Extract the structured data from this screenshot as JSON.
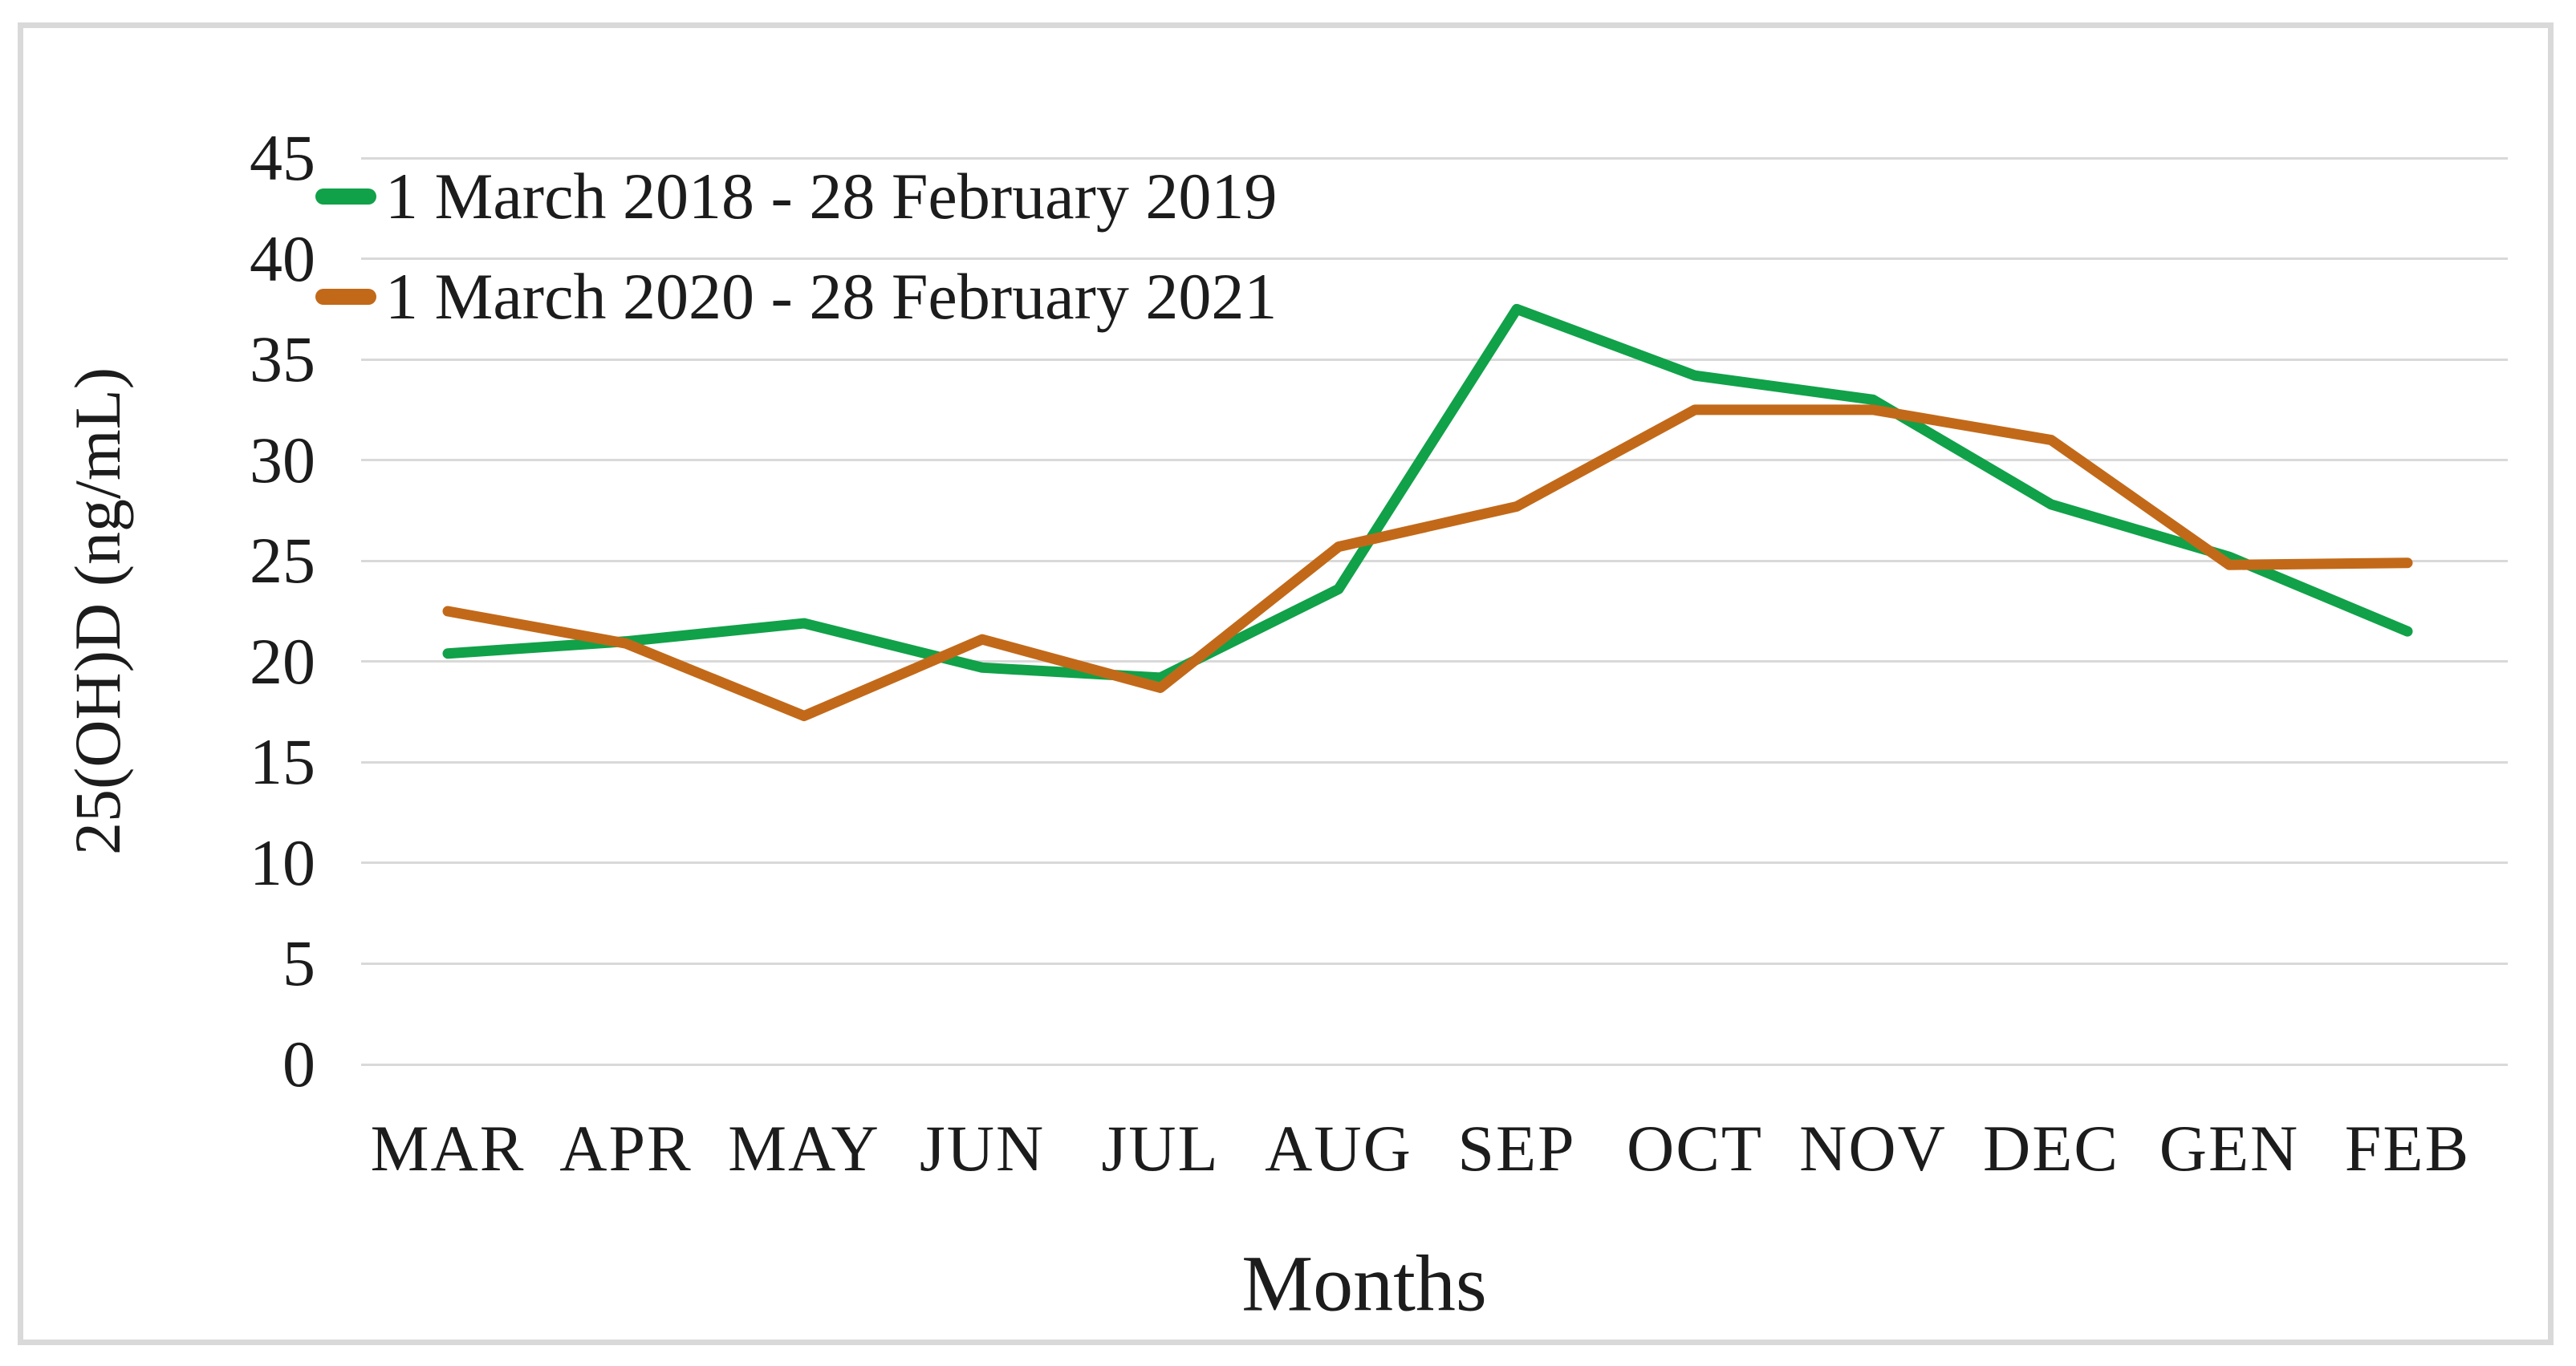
{
  "figure": {
    "background": "#ffffff",
    "border_color": "#d9d9d9",
    "text_color": "#1c1c1c"
  },
  "y_axis": {
    "title": "25(OH)D (ng/mL)",
    "tick_labels": [
      "45",
      "40",
      "35",
      "30",
      "25",
      "20",
      "15",
      "10",
      "5",
      "0"
    ]
  },
  "x_axis": {
    "title": "Months"
  },
  "legend": {
    "position": "top-left",
    "items": [
      {
        "label": "1 March 2018 - 28 February 2019",
        "color": "#11a149"
      },
      {
        "label": "1 March 2020 - 28 February 2021",
        "color": "#c26919"
      }
    ]
  },
  "chart_data": {
    "type": "line",
    "title": "",
    "categories": [
      "MAR",
      "APR",
      "MAY",
      "JUN",
      "JUL",
      "AUG",
      "SEP",
      "OCT",
      "NOV",
      "DEC",
      "GEN",
      "FEB"
    ],
    "series": [
      {
        "name": "1 March 2018 - 28 February 2019",
        "color": "#11a149",
        "values": [
          20.4,
          21.0,
          21.9,
          19.7,
          19.2,
          23.6,
          37.5,
          34.2,
          33.0,
          27.8,
          25.2,
          21.5
        ]
      },
      {
        "name": "1 March 2020 - 28 February 2021",
        "color": "#c26919",
        "values": [
          22.5,
          20.9,
          17.3,
          21.1,
          18.7,
          25.7,
          27.7,
          32.5,
          32.5,
          31.0,
          24.8,
          24.9
        ]
      }
    ],
    "xlabel": "Months",
    "ylabel": "25(OH)D (ng/mL)",
    "ylim": [
      0,
      45
    ],
    "ytick_step": 5,
    "grid": true,
    "gridline_color": "#d9d9d9",
    "line_width": 13,
    "legend_position": "top-left"
  }
}
